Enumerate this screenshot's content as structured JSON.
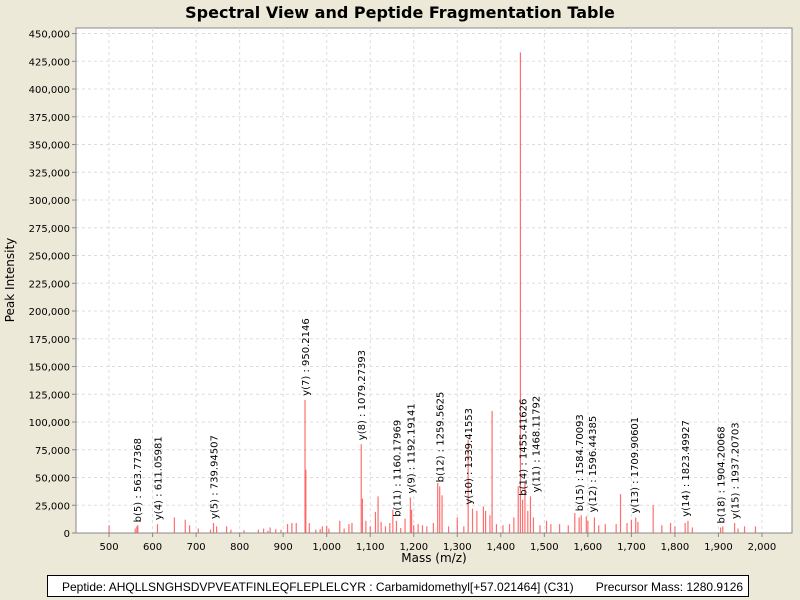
{
  "chart_data": {
    "type": "bar",
    "title": "Spectral View and Peptide Fragmentation Table",
    "xlabel": "Mass (m/z)",
    "ylabel": "Peak Intensity",
    "xlim": [
      424,
      2069
    ],
    "ylim": [
      0,
      455000
    ],
    "x_ticks": [
      "500",
      "600",
      "700",
      "800",
      "900",
      "1,000",
      "1,100",
      "1,200",
      "1,300",
      "1,400",
      "1,500",
      "1,600",
      "1,700",
      "1,800",
      "1,900",
      "2,000"
    ],
    "y_ticks": [
      "0",
      "25,000",
      "50,000",
      "75,000",
      "100,000",
      "125,000",
      "150,000",
      "175,000",
      "200,000",
      "225,000",
      "250,000",
      "275,000",
      "300,000",
      "325,000",
      "350,000",
      "375,000",
      "400,000",
      "425,000",
      "450,000"
    ],
    "grid": true,
    "color": "#FF5555",
    "peaks": [
      [
        500,
        7000
      ],
      [
        560,
        4000
      ],
      [
        563.8,
        6000
      ],
      [
        566,
        7000
      ],
      [
        611.1,
        8000
      ],
      [
        650,
        14000
      ],
      [
        675,
        12000
      ],
      [
        685,
        7000
      ],
      [
        705,
        4000
      ],
      [
        733,
        3000
      ],
      [
        739.9,
        9000
      ],
      [
        747,
        6000
      ],
      [
        770,
        6000
      ],
      [
        780,
        3000
      ],
      [
        810,
        2500
      ],
      [
        843,
        3000
      ],
      [
        855,
        4000
      ],
      [
        865,
        2000
      ],
      [
        870,
        5000
      ],
      [
        883,
        3500
      ],
      [
        895,
        3000
      ],
      [
        910,
        8000
      ],
      [
        920,
        9000
      ],
      [
        930,
        9000
      ],
      [
        950.2,
        120000
      ],
      [
        952,
        57000
      ],
      [
        960,
        9000
      ],
      [
        975,
        3000
      ],
      [
        985,
        3500
      ],
      [
        990,
        6000
      ],
      [
        1000,
        6500
      ],
      [
        1005,
        4000
      ],
      [
        1030,
        11000
      ],
      [
        1040,
        4000
      ],
      [
        1051,
        8000
      ],
      [
        1058,
        9000
      ],
      [
        1079.3,
        80000
      ],
      [
        1082,
        31000
      ],
      [
        1090,
        11000
      ],
      [
        1100,
        6000
      ],
      [
        1112,
        19000
      ],
      [
        1118,
        33000
      ],
      [
        1125,
        10000
      ],
      [
        1135,
        6000
      ],
      [
        1145,
        9000
      ],
      [
        1152,
        21000
      ],
      [
        1160.2,
        11000
      ],
      [
        1170,
        4500
      ],
      [
        1180,
        13000
      ],
      [
        1192.2,
        32000
      ],
      [
        1195,
        21000
      ],
      [
        1200,
        7000
      ],
      [
        1210,
        8000
      ],
      [
        1220,
        7000
      ],
      [
        1230,
        6000
      ],
      [
        1245,
        9000
      ],
      [
        1255,
        45000
      ],
      [
        1259.6,
        42000
      ],
      [
        1265,
        34000
      ],
      [
        1280,
        6000
      ],
      [
        1300,
        14000
      ],
      [
        1315,
        6000
      ],
      [
        1325,
        84000
      ],
      [
        1335,
        22000
      ],
      [
        1345,
        20000
      ],
      [
        1360,
        24000
      ],
      [
        1365,
        20000
      ],
      [
        1375,
        16000
      ],
      [
        1380,
        110000
      ],
      [
        1390,
        8000
      ],
      [
        1405,
        7000
      ],
      [
        1420,
        8000
      ],
      [
        1430,
        14000
      ],
      [
        1440,
        42000
      ],
      [
        1445,
        433000
      ],
      [
        1450,
        30000
      ],
      [
        1455.4,
        45000
      ],
      [
        1462,
        20000
      ],
      [
        1468.1,
        33000
      ],
      [
        1475,
        14000
      ],
      [
        1490,
        7000
      ],
      [
        1505,
        11000
      ],
      [
        1515,
        8000
      ],
      [
        1535,
        8000
      ],
      [
        1555,
        7000
      ],
      [
        1570,
        18000
      ],
      [
        1580,
        14000
      ],
      [
        1584.7,
        16000
      ],
      [
        1596.4,
        15000
      ],
      [
        1600,
        11000
      ],
      [
        1615,
        14000
      ],
      [
        1625,
        7000
      ],
      [
        1640,
        8000
      ],
      [
        1665,
        8000
      ],
      [
        1675,
        35000
      ],
      [
        1690,
        9000
      ],
      [
        1700,
        12000
      ],
      [
        1709.9,
        14000
      ],
      [
        1715,
        10000
      ],
      [
        1750,
        25000
      ],
      [
        1770,
        7000
      ],
      [
        1790,
        9000
      ],
      [
        1800,
        6000
      ],
      [
        1823.5,
        9000
      ],
      [
        1830,
        11000
      ],
      [
        1840,
        5000
      ],
      [
        1905,
        5000
      ],
      [
        1910,
        6000
      ],
      [
        1937.2,
        9000
      ],
      [
        1945,
        4000
      ],
      [
        1960,
        6000
      ],
      [
        1985,
        6000
      ]
    ],
    "annotations": [
      {
        "label": "b(5) : 563.77368",
        "mz": 563.77368,
        "intensity": 6000
      },
      {
        "label": "y(4) : 611.05981",
        "mz": 611.05981,
        "intensity": 8000
      },
      {
        "label": "y(5) : 739.94507",
        "mz": 739.94507,
        "intensity": 9000
      },
      {
        "label": "y(7) : 950.2146",
        "mz": 950.2146,
        "intensity": 120000
      },
      {
        "label": "y(8) : 1079.27393",
        "mz": 1079.27393,
        "intensity": 80000
      },
      {
        "label": "b(11) : 1160.17969",
        "mz": 1160.17969,
        "intensity": 11000
      },
      {
        "label": "y(9) : 1192.19141",
        "mz": 1192.19141,
        "intensity": 32000
      },
      {
        "label": "b(12) : 1259.5625",
        "mz": 1259.5625,
        "intensity": 42000
      },
      {
        "label": "y(10) : 1339.41553",
        "mz": 1325,
        "intensity": 22000
      },
      {
        "label": "b(14) : 1455.41626",
        "mz": 1450,
        "intensity": 30000
      },
      {
        "label": "y(11) : 1468.11792",
        "mz": 1462,
        "intensity": 33000
      },
      {
        "label": "b(15) : 1584.70093",
        "mz": 1580,
        "intensity": 16000
      },
      {
        "label": "y(12) : 1596.44385",
        "mz": 1592,
        "intensity": 15000
      },
      {
        "label": "y(13) : 1709.90601",
        "mz": 1706,
        "intensity": 14000
      },
      {
        "label": "y(14) : 1823.49927",
        "mz": 1823.49927,
        "intensity": 11000
      },
      {
        "label": "b(18) : 1904.20068",
        "mz": 1904.20068,
        "intensity": 5000
      },
      {
        "label": "y(15) : 1937.20703",
        "mz": 1937.20703,
        "intensity": 9000
      }
    ]
  },
  "footer": {
    "peptide": "Peptide: AHQLLSNGHSDVPVEATFINLEQFLEPLELCYR : Carbamidomethyl[+57.021464] (C31)",
    "precursor": "Precursor Mass: 1280.9126"
  }
}
